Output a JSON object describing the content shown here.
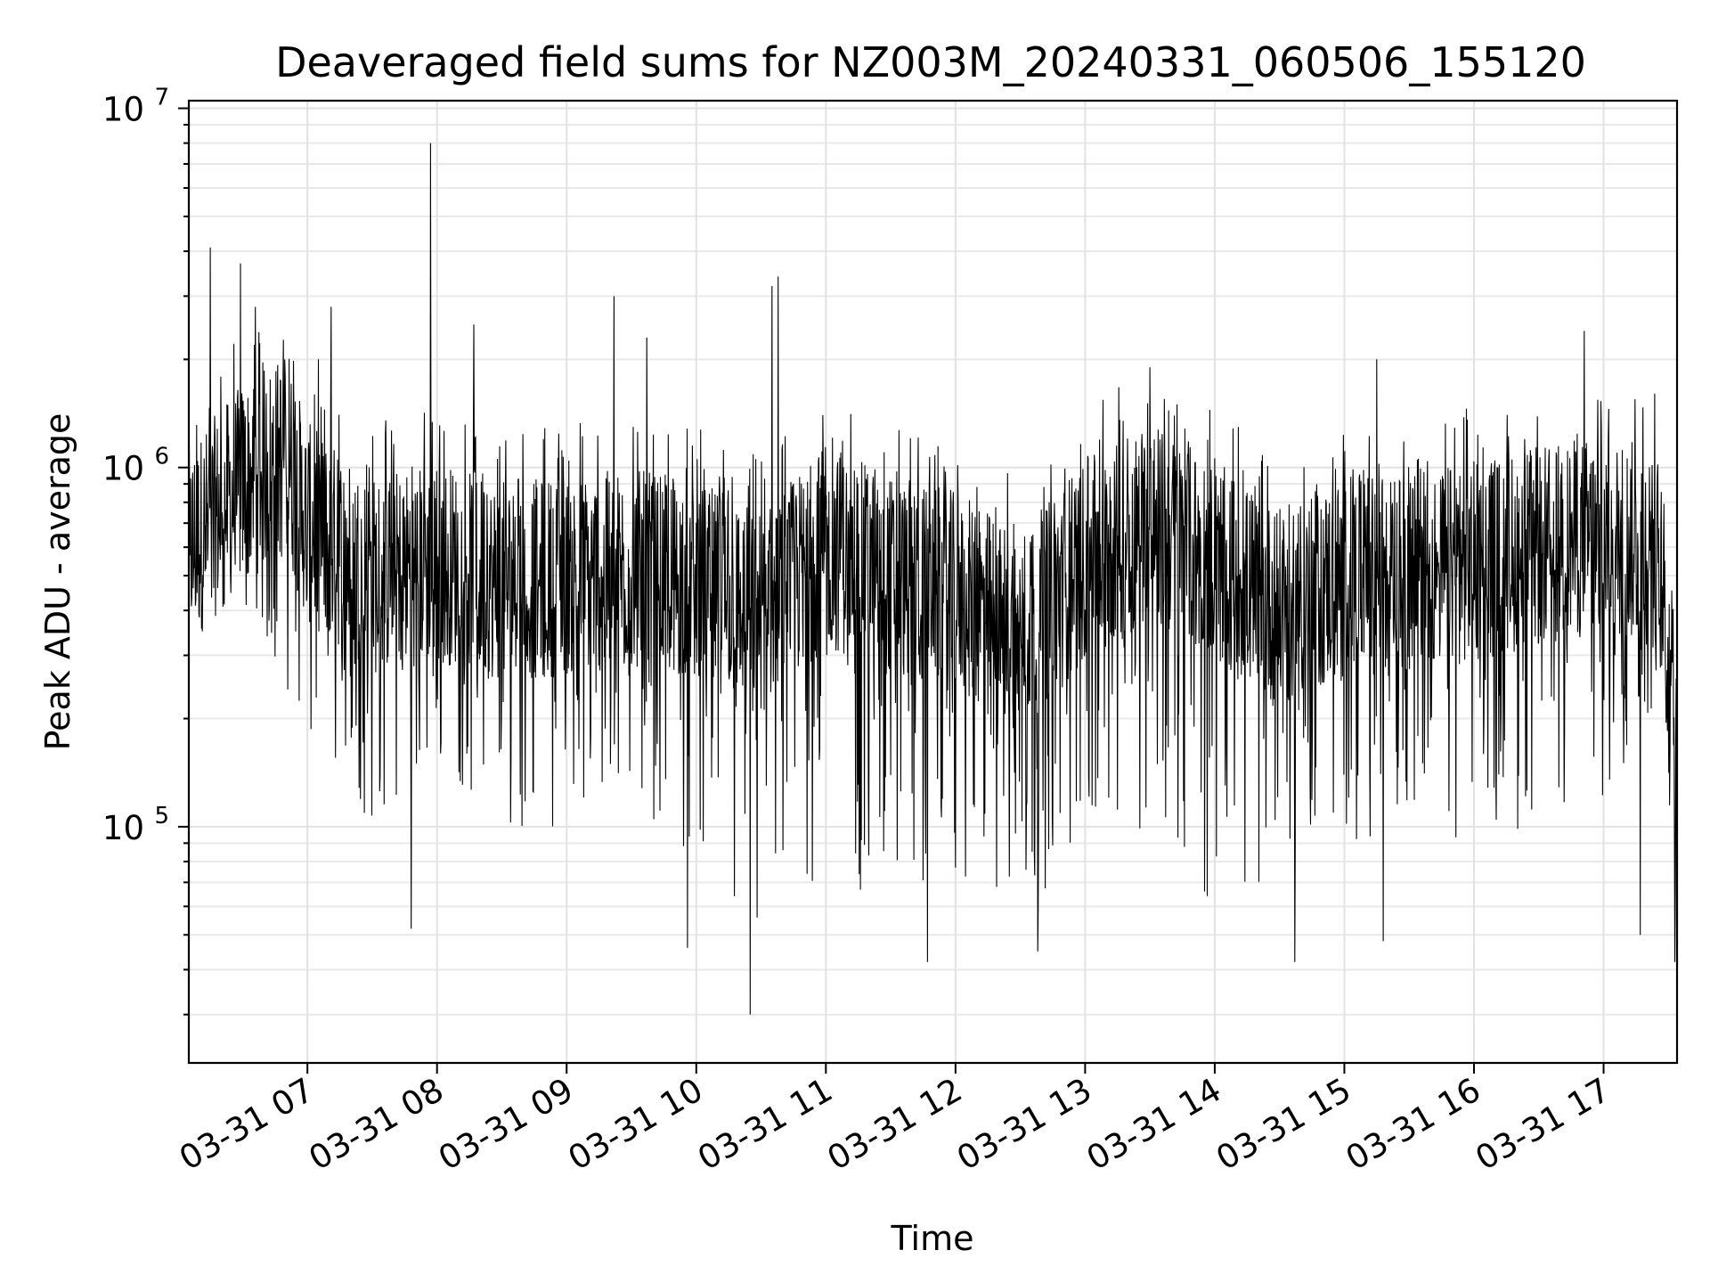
{
  "chart_data": {
    "type": "line",
    "title": "Deaveraged field sums for NZ003M_20240331_060506_155120",
    "xlabel": "Time",
    "ylabel": "Peak ADU - average",
    "yscale": "log",
    "xlim": [
      "2024-03-31 06:05:06",
      "2024-03-31 17:34:00"
    ],
    "ylim": [
      22000,
      10500000
    ],
    "grid": true,
    "grid_minor": true,
    "x_ticks": [
      "03-31 07",
      "03-31 08",
      "03-31 09",
      "03-31 10",
      "03-31 11",
      "03-31 12",
      "03-31 13",
      "03-31 14",
      "03-31 15",
      "03-31 16",
      "03-31 17"
    ],
    "y_ticks": [
      {
        "value": 100000,
        "base": "10",
        "exp": "5"
      },
      {
        "value": 1000000,
        "base": "10",
        "exp": "6"
      },
      {
        "value": 10000000,
        "base": "10",
        "exp": "7"
      }
    ],
    "series": [
      {
        "color": "#000000",
        "baseline_profile": {
          "x": [
            "06:05",
            "06:30",
            "06:50",
            "07:00",
            "07:30",
            "08:00",
            "08:30",
            "09:00",
            "09:30",
            "10:00",
            "10:30",
            "11:00",
            "11:30",
            "12:00",
            "12:30",
            "13:00",
            "13:30",
            "14:00",
            "14:30",
            "15:00",
            "15:30",
            "16:00",
            "16:30",
            "17:00",
            "17:25",
            "17:34"
          ],
          "y_center": [
            600000,
            900000,
            1100000,
            700000,
            500000,
            550000,
            480000,
            500000,
            520000,
            480000,
            400000,
            600000,
            500000,
            450000,
            350000,
            550000,
            700000,
            550000,
            400000,
            500000,
            500000,
            550000,
            600000,
            650000,
            600000,
            200000
          ],
          "y_low": [
            350000,
            400000,
            250000,
            150000,
            100000,
            150000,
            100000,
            100000,
            120000,
            80000,
            40000,
            70000,
            60000,
            70000,
            50000,
            90000,
            100000,
            60000,
            70000,
            90000,
            100000,
            90000,
            100000,
            100000,
            200000,
            45000
          ]
        },
        "spikes": [
          {
            "x": "06:15",
            "y": 4100000
          },
          {
            "x": "06:29",
            "y": 3700000
          },
          {
            "x": "06:36",
            "y": 2800000
          },
          {
            "x": "07:05",
            "y": 2000000
          },
          {
            "x": "07:11",
            "y": 2800000
          },
          {
            "x": "07:57",
            "y": 8000000
          },
          {
            "x": "08:17",
            "y": 2500000
          },
          {
            "x": "09:22",
            "y": 3000000
          },
          {
            "x": "09:37",
            "y": 2300000
          },
          {
            "x": "10:35",
            "y": 3200000
          },
          {
            "x": "10:38",
            "y": 3400000
          },
          {
            "x": "13:30",
            "y": 1900000
          },
          {
            "x": "15:15",
            "y": 2000000
          },
          {
            "x": "16:51",
            "y": 2400000
          },
          {
            "x": "07:48",
            "y": 52000
          },
          {
            "x": "09:56",
            "y": 46000
          },
          {
            "x": "10:25",
            "y": 30000
          },
          {
            "x": "11:47",
            "y": 42000
          },
          {
            "x": "12:38",
            "y": 45000
          },
          {
            "x": "14:37",
            "y": 42000
          },
          {
            "x": "15:18",
            "y": 48000
          },
          {
            "x": "17:17",
            "y": 50000
          },
          {
            "x": "17:33",
            "y": 42000
          }
        ]
      }
    ]
  }
}
